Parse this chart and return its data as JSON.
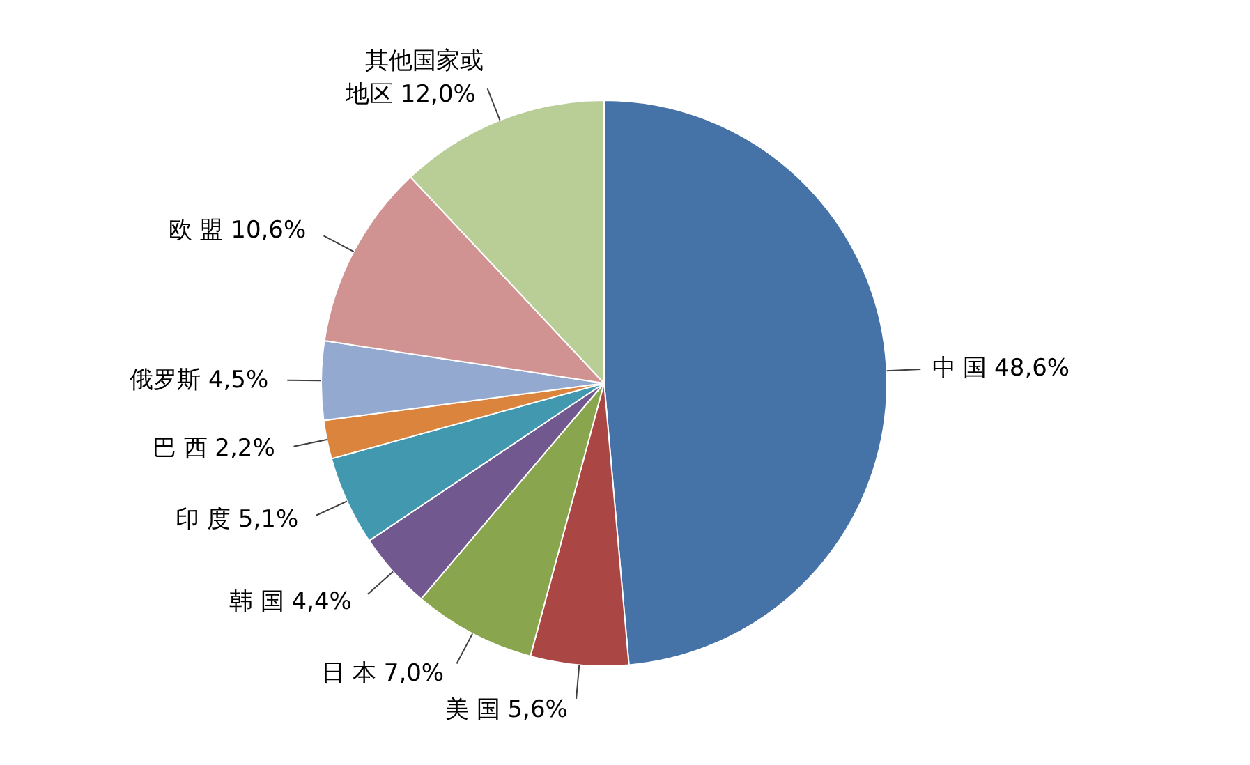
{
  "chart_data": {
    "type": "pie",
    "categories": [
      "中 国",
      "美 国",
      "日 本",
      "韩 国",
      "印 度",
      "巴 西",
      "俄罗斯",
      "欧 盟",
      "其他国家或地区"
    ],
    "values": [
      48.6,
      5.6,
      7.0,
      4.4,
      5.1,
      2.2,
      4.5,
      10.6,
      12.0
    ],
    "value_labels": [
      "48,6%",
      "5,6%",
      "7,0%",
      "4,4%",
      "5,1%",
      "2,2%",
      "4,5%",
      "10,6%",
      "12,0%"
    ],
    "colors": [
      "#4572a7",
      "#aa4643",
      "#89a54e",
      "#71588f",
      "#4198af",
      "#db843d",
      "#93a9cf",
      "#d19392",
      "#b9cd96"
    ]
  }
}
